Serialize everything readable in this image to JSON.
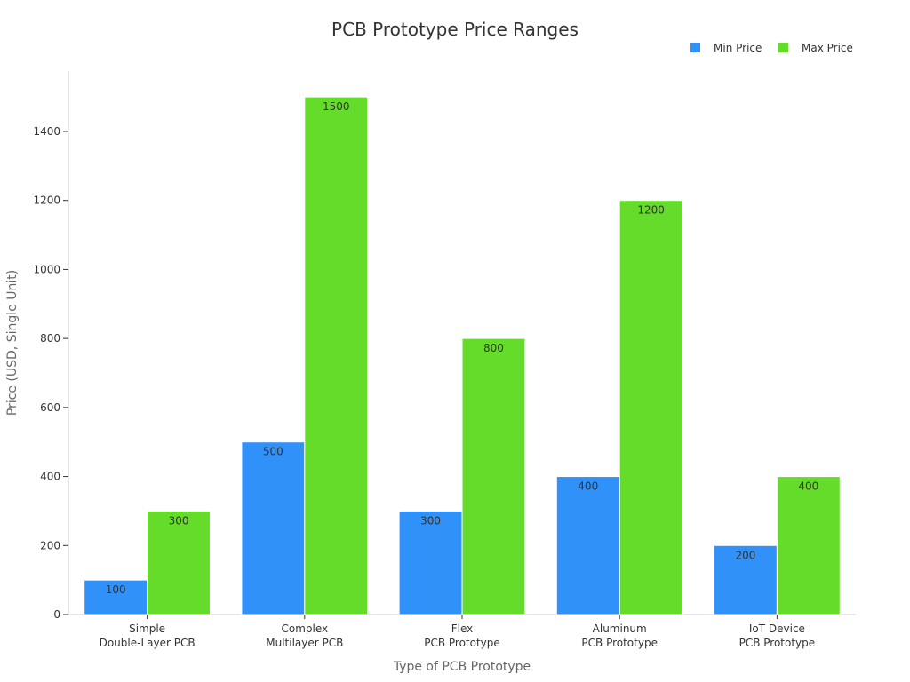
{
  "chart_data": {
    "type": "bar",
    "title": "PCB Prototype Price Ranges",
    "xlabel": "Type of PCB Prototype",
    "ylabel": "Price (USD, Single Unit)",
    "categories": [
      [
        "Simple",
        "Double-Layer PCB"
      ],
      [
        "Complex",
        "Multilayer PCB"
      ],
      [
        "Flex",
        "PCB Prototype"
      ],
      [
        "Aluminum",
        "PCB Prototype"
      ],
      [
        "IoT Device",
        "PCB Prototype"
      ]
    ],
    "series": [
      {
        "name": "Min Price",
        "color": "#3091f8",
        "values": [
          100,
          500,
          300,
          400,
          200
        ]
      },
      {
        "name": "Max Price",
        "color": "#66dc2a",
        "values": [
          300,
          1500,
          800,
          1200,
          400
        ]
      }
    ],
    "yticks": [
      0,
      200,
      400,
      600,
      800,
      1000,
      1200,
      1400
    ],
    "ylim": [
      0,
      1575
    ],
    "legend_position": "top-right",
    "grid": false
  }
}
